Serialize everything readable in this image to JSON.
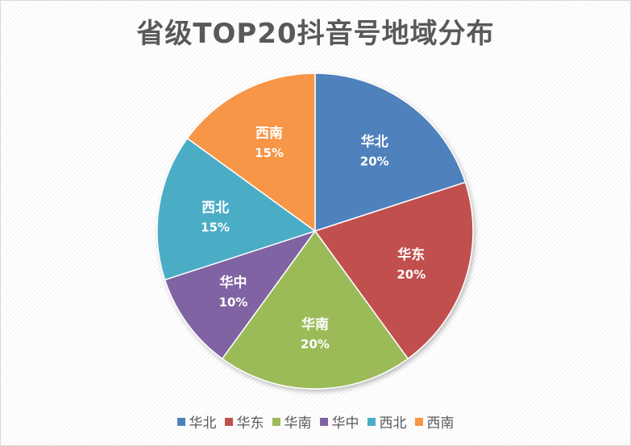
{
  "chart_data": {
    "type": "pie",
    "title": "省级TOP20抖音号地域分布",
    "categories": [
      "华北",
      "华东",
      "华南",
      "华中",
      "西北",
      "西南"
    ],
    "values": [
      20,
      20,
      20,
      10,
      15,
      15
    ],
    "value_labels": [
      "20%",
      "20%",
      "20%",
      "10%",
      "15%",
      "15%"
    ],
    "colors": [
      "#4f81bd",
      "#c0504d",
      "#9bbb59",
      "#8064a2",
      "#4bacc6",
      "#f79646"
    ],
    "legend": "bottom",
    "start_angle": "12 o'clock, clockwise"
  }
}
